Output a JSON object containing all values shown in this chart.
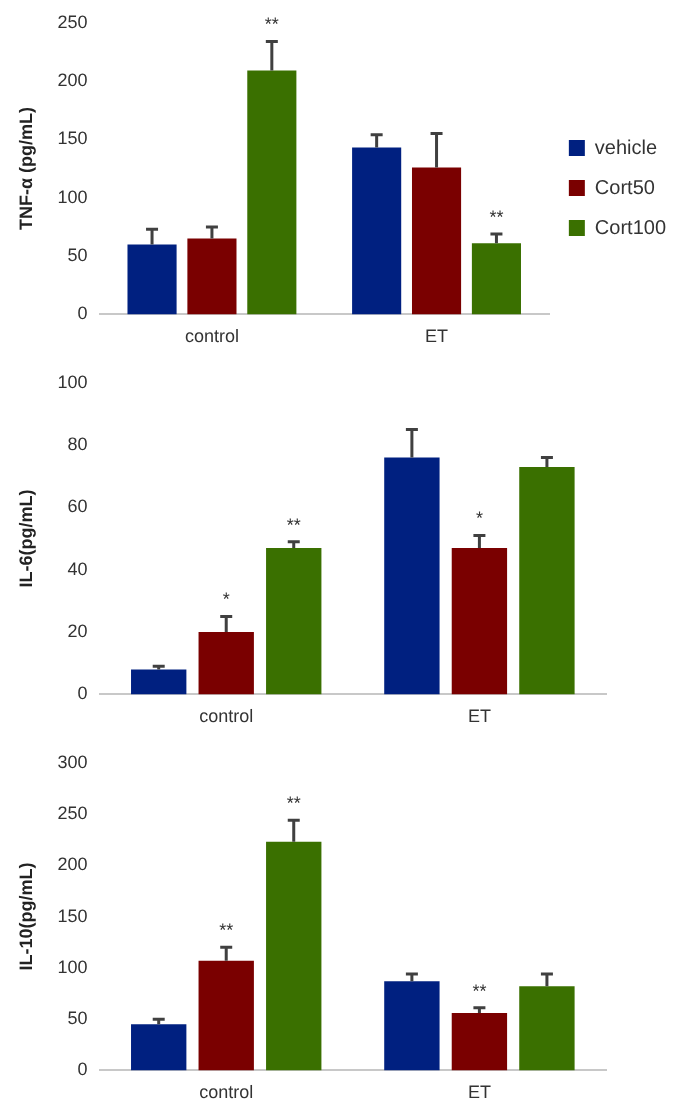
{
  "chart_data": [
    {
      "type": "bar",
      "ylabel": "TNF-α (pg/mL)",
      "categories": [
        "control",
        "ET"
      ],
      "ylim": [
        0,
        250
      ],
      "yticks": [
        0,
        50,
        100,
        150,
        200,
        250
      ],
      "grid": false,
      "legend": "right",
      "series": [
        {
          "name": "vehicle",
          "color": "#002080",
          "values": [
            60,
            143
          ],
          "errors": [
            [
              60,
              73
            ],
            [
              143,
              154
            ]
          ]
        },
        {
          "name": "Cort50",
          "color": "#7a0000",
          "values": [
            65,
            126
          ],
          "errors": [
            [
              65,
              75
            ],
            [
              126,
              155
            ]
          ]
        },
        {
          "name": "Cort100",
          "color": "#3a7000",
          "values": [
            209,
            61
          ],
          "errors": [
            [
              209,
              234
            ],
            [
              61,
              69
            ]
          ]
        }
      ],
      "annotations": [
        "**",
        "**"
      ]
    },
    {
      "type": "bar",
      "ylabel": "IL-6(pg/mL)",
      "categories": [
        "control",
        "ET"
      ],
      "ylim": [
        0,
        100
      ],
      "yticks": [
        0,
        20,
        40,
        60,
        80,
        100
      ],
      "grid": false,
      "legend": false,
      "series": [
        {
          "color": "#002080",
          "values": [
            8,
            76
          ],
          "errors": [
            [
              8,
              9
            ],
            [
              76,
              85
            ]
          ]
        },
        {
          "color": "#7a0000",
          "values": [
            20,
            47
          ],
          "errors": [
            [
              20,
              25
            ],
            [
              47,
              51
            ]
          ]
        },
        {
          "color": "#3a7000",
          "values": [
            47,
            73
          ],
          "errors": [
            [
              47,
              49
            ],
            [
              73,
              76
            ]
          ]
        }
      ],
      "annotations": [
        {
          "text": "*",
          "x": "control",
          "y": 20
        },
        "**",
        {
          "text": "*",
          "x": "ET",
          "y": 47
        }
      ]
    },
    {
      "type": "bar",
      "ylabel": "IL-10(pg/mL)",
      "categories": [
        "control",
        "ET"
      ],
      "ylim": [
        0,
        300
      ],
      "yticks": [
        0,
        50,
        100,
        150,
        200,
        250,
        300
      ],
      "grid": false,
      "legend": false,
      "series": [
        {
          "color": "#002080",
          "values": [
            45,
            87
          ],
          "errors": [
            [
              45,
              50
            ],
            [
              87,
              94
            ]
          ]
        },
        {
          "color": "#7a0000",
          "values": [
            107,
            56
          ],
          "errors": [
            [
              107,
              120
            ],
            [
              56,
              61
            ]
          ]
        },
        {
          "color": "#3a7000",
          "values": [
            223,
            82
          ],
          "errors": [
            [
              223,
              244
            ],
            [
              82,
              94
            ]
          ]
        }
      ],
      "annotations": [
        {
          "text": "**",
          "x": "control",
          "y": 107
        },
        "**",
        {
          "text": "**",
          "x": "ET",
          "y": 56
        }
      ]
    }
  ]
}
